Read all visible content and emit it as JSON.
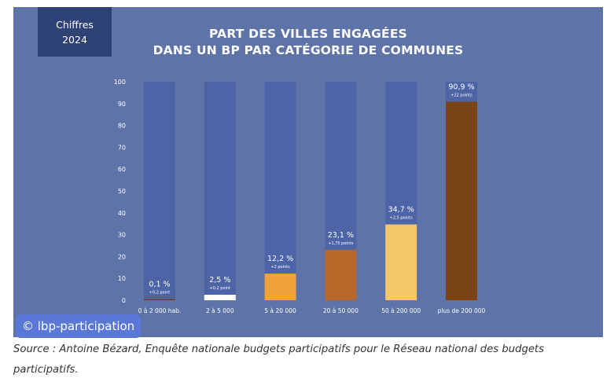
{
  "badge": {
    "line1": "Chiffres",
    "line2": "2024"
  },
  "credit": "© lbp-participation",
  "caption": "Source : Antoine Bézard, Enquête nationale budgets participatifs pour le Réseau national des budgets participatifs.",
  "colors": {
    "background": "#5e73a7",
    "track": "#4d65a6",
    "badge": "#2f4276",
    "credit_bg": "#5a78d6"
  },
  "chart_data": {
    "type": "bar",
    "title": "PART DES VILLES ENGAGÉES DANS UN BP PAR CATÉGORIE DE COMMUNES",
    "title_lines": [
      "PART DES VILLES ENGAGÉES",
      "DANS UN BP PAR CATÉGORIE DE COMMUNES"
    ],
    "xlabel": "",
    "ylabel": "",
    "ylim": [
      0,
      100
    ],
    "yticks": [
      0,
      10,
      20,
      30,
      40,
      50,
      60,
      70,
      80,
      90,
      100
    ],
    "categories": [
      "0 à 2 000 hab.",
      "2 à 5 000",
      "5 à 20 000",
      "20 à 50 000",
      "50 à 200 000",
      "plus de 200 000"
    ],
    "values": [
      0.1,
      2.5,
      12.2,
      23.1,
      34.7,
      90.9
    ],
    "value_labels": [
      "0,1 %",
      "2,5 %",
      "12,2 %",
      "23,1 %",
      "34,7 %",
      "90,9 %"
    ],
    "change_labels": [
      "+0,2 point",
      "+0,2 point",
      "+2 points",
      "+1,75 points",
      "+2,5 points",
      "+22 points"
    ],
    "bar_colors": [
      "#7a3e14",
      "#ffffff",
      "#f2a23a",
      "#b5682a",
      "#f6c76a",
      "#7a4416"
    ],
    "grid": false,
    "legend": "none"
  }
}
